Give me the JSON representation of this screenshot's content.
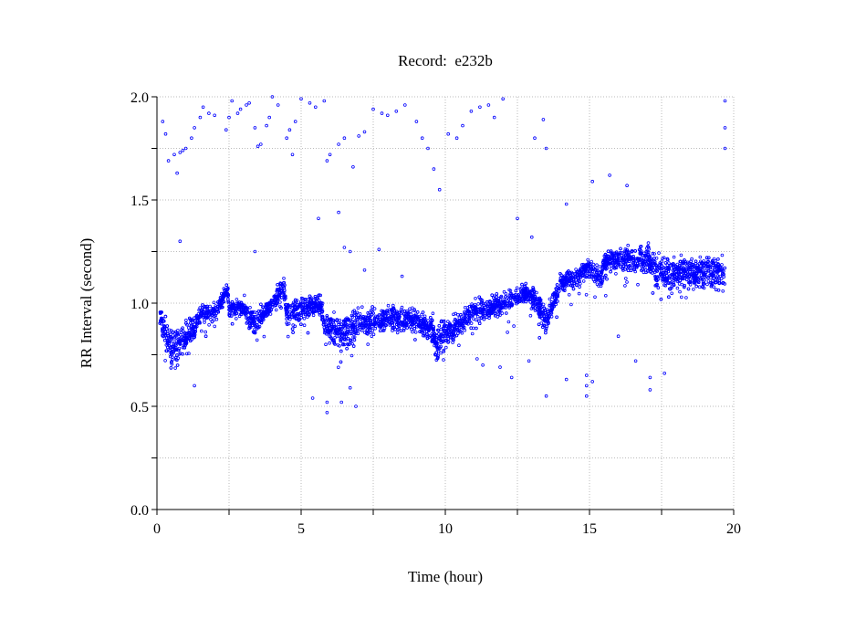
{
  "chart_data": {
    "type": "scatter",
    "title": "Record:  e232b",
    "xlabel": "Time (hour)",
    "ylabel": "RR Interval (second)",
    "xlim": [
      0,
      20
    ],
    "ylim": [
      0,
      2.0
    ],
    "x_ticks": [
      0,
      5,
      10,
      15,
      20
    ],
    "x_tick_labels": [
      "0",
      "5",
      "10",
      "15",
      "20"
    ],
    "x_minor_ticks": [
      2.5,
      7.5,
      12.5,
      17.5
    ],
    "y_ticks": [
      0.0,
      0.5,
      1.0,
      1.5,
      2.0
    ],
    "y_tick_labels": [
      "0.0",
      "0.5",
      "1.0",
      "1.5",
      "2.0"
    ],
    "y_minor_ticks": [
      0.25,
      0.75,
      1.25,
      1.75
    ],
    "grid": true,
    "marker_color": "#0000ff",
    "series_trend": {
      "description_hour_center_halfspread": [
        [
          0.1,
          0.92,
          0.05
        ],
        [
          0.3,
          0.88,
          0.06
        ],
        [
          0.5,
          0.78,
          0.07
        ],
        [
          0.8,
          0.8,
          0.07
        ],
        [
          1.0,
          0.83,
          0.06
        ],
        [
          1.3,
          0.88,
          0.05
        ],
        [
          1.5,
          0.95,
          0.04
        ],
        [
          2.0,
          0.95,
          0.04
        ],
        [
          2.2,
          1.0,
          0.04
        ],
        [
          2.45,
          1.07,
          0.04
        ],
        [
          2.5,
          0.97,
          0.04
        ],
        [
          3.0,
          0.98,
          0.04
        ],
        [
          3.4,
          0.9,
          0.06
        ],
        [
          3.7,
          0.95,
          0.04
        ],
        [
          4.0,
          1.0,
          0.04
        ],
        [
          4.4,
          1.08,
          0.05
        ],
        [
          4.5,
          0.95,
          0.05
        ],
        [
          5.0,
          0.97,
          0.04
        ],
        [
          5.7,
          1.0,
          0.04
        ],
        [
          5.8,
          0.88,
          0.06
        ],
        [
          6.5,
          0.86,
          0.07
        ],
        [
          7.0,
          0.9,
          0.06
        ],
        [
          8.0,
          0.93,
          0.05
        ],
        [
          9.0,
          0.92,
          0.05
        ],
        [
          9.5,
          0.88,
          0.06
        ],
        [
          9.7,
          0.8,
          0.07
        ],
        [
          10.0,
          0.85,
          0.06
        ],
        [
          11.0,
          0.95,
          0.05
        ],
        [
          12.0,
          1.0,
          0.04
        ],
        [
          12.8,
          1.05,
          0.04
        ],
        [
          13.2,
          1.0,
          0.05
        ],
        [
          13.5,
          0.92,
          0.06
        ],
        [
          14.0,
          1.1,
          0.04
        ],
        [
          14.5,
          1.12,
          0.04
        ],
        [
          15.0,
          1.17,
          0.04
        ],
        [
          15.4,
          1.12,
          0.05
        ],
        [
          15.5,
          1.2,
          0.05
        ],
        [
          17.0,
          1.22,
          0.06
        ],
        [
          17.4,
          1.15,
          0.07
        ],
        [
          19.7,
          1.15,
          0.07
        ]
      ]
    },
    "outliers": [
      [
        0.2,
        1.88
      ],
      [
        0.3,
        1.82
      ],
      [
        0.4,
        1.69
      ],
      [
        0.6,
        1.72
      ],
      [
        0.7,
        1.63
      ],
      [
        0.8,
        1.73
      ],
      [
        0.9,
        1.74
      ],
      [
        1.0,
        1.75
      ],
      [
        1.2,
        1.8
      ],
      [
        1.3,
        1.85
      ],
      [
        1.5,
        1.9
      ],
      [
        1.6,
        1.95
      ],
      [
        1.8,
        1.92
      ],
      [
        2.0,
        1.91
      ],
      [
        2.4,
        1.84
      ],
      [
        2.5,
        1.9
      ],
      [
        2.6,
        1.98
      ],
      [
        2.8,
        1.92
      ],
      [
        2.9,
        1.94
      ],
      [
        3.1,
        1.96
      ],
      [
        3.2,
        1.97
      ],
      [
        3.4,
        1.85
      ],
      [
        3.5,
        1.76
      ],
      [
        3.6,
        1.77
      ],
      [
        3.8,
        1.86
      ],
      [
        3.9,
        1.9
      ],
      [
        4.0,
        2.0
      ],
      [
        4.2,
        1.96
      ],
      [
        4.5,
        1.8
      ],
      [
        4.6,
        1.84
      ],
      [
        4.7,
        1.72
      ],
      [
        4.8,
        1.88
      ],
      [
        5.0,
        1.99
      ],
      [
        5.3,
        1.97
      ],
      [
        5.5,
        1.95
      ],
      [
        5.8,
        1.98
      ],
      [
        5.9,
        1.69
      ],
      [
        6.0,
        1.72
      ],
      [
        6.3,
        1.77
      ],
      [
        6.5,
        1.8
      ],
      [
        6.8,
        1.66
      ],
      [
        7.0,
        1.81
      ],
      [
        7.2,
        1.83
      ],
      [
        7.5,
        1.94
      ],
      [
        7.8,
        1.92
      ],
      [
        8.0,
        1.91
      ],
      [
        8.3,
        1.93
      ],
      [
        8.6,
        1.96
      ],
      [
        9.0,
        1.88
      ],
      [
        9.2,
        1.8
      ],
      [
        9.4,
        1.75
      ],
      [
        9.6,
        1.65
      ],
      [
        9.8,
        1.55
      ],
      [
        10.1,
        1.82
      ],
      [
        10.4,
        1.8
      ],
      [
        10.6,
        1.86
      ],
      [
        10.9,
        1.93
      ],
      [
        11.2,
        1.95
      ],
      [
        11.5,
        1.96
      ],
      [
        11.7,
        1.9
      ],
      [
        12.0,
        1.99
      ],
      [
        12.5,
        1.41
      ],
      [
        13.1,
        1.8
      ],
      [
        13.4,
        1.89
      ],
      [
        13.5,
        1.75
      ],
      [
        14.2,
        1.48
      ],
      [
        15.1,
        1.59
      ],
      [
        15.7,
        1.62
      ],
      [
        16.3,
        1.57
      ],
      [
        19.7,
        1.98
      ],
      [
        19.7,
        1.85
      ],
      [
        19.7,
        1.75
      ],
      [
        1.3,
        0.6
      ],
      [
        0.8,
        1.3
      ],
      [
        5.4,
        0.54
      ],
      [
        5.9,
        0.52
      ],
      [
        5.9,
        0.47
      ],
      [
        6.4,
        0.52
      ],
      [
        6.7,
        0.59
      ],
      [
        6.9,
        0.5
      ],
      [
        6.5,
        1.27
      ],
      [
        6.7,
        1.25
      ],
      [
        6.3,
        1.44
      ],
      [
        5.6,
        1.41
      ],
      [
        7.2,
        1.16
      ],
      [
        7.7,
        1.26
      ],
      [
        8.5,
        1.13
      ],
      [
        11.1,
        0.73
      ],
      [
        11.3,
        0.7
      ],
      [
        11.9,
        0.69
      ],
      [
        12.3,
        0.64
      ],
      [
        12.9,
        0.72
      ],
      [
        13.0,
        1.32
      ],
      [
        13.5,
        0.55
      ],
      [
        14.2,
        0.63
      ],
      [
        14.9,
        0.6
      ],
      [
        14.9,
        0.65
      ],
      [
        14.9,
        0.55
      ],
      [
        15.1,
        0.62
      ],
      [
        16.0,
        0.84
      ],
      [
        16.6,
        0.72
      ],
      [
        17.1,
        0.64
      ],
      [
        17.1,
        0.58
      ],
      [
        17.6,
        0.66
      ],
      [
        3.4,
        1.25
      ]
    ]
  }
}
